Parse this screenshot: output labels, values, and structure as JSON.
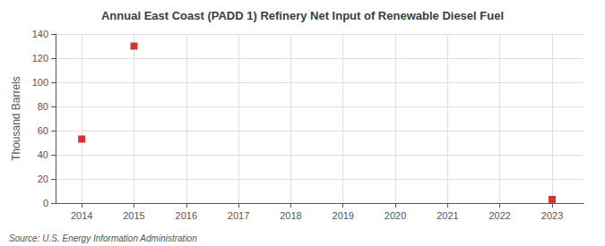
{
  "chart_data": {
    "type": "scatter",
    "title": "Annual East Coast (PADD 1) Refinery Net Input of Renewable Diesel Fuel",
    "ylabel": "Thousand Barrels",
    "annotation": "Source: U.S. Energy Information Administration",
    "x": [
      2014,
      2015,
      2023
    ],
    "values": [
      53,
      130,
      3
    ],
    "color": "#cc0000",
    "marker": "square",
    "xlim": [
      2013.5,
      2023.6
    ],
    "xticks": [
      2014,
      2015,
      2016,
      2017,
      2018,
      2019,
      2020,
      2021,
      2022,
      2023
    ],
    "ylim": [
      0,
      140
    ],
    "yticks": [
      0,
      20,
      40,
      60,
      80,
      100,
      120,
      140
    ],
    "grid": true
  }
}
